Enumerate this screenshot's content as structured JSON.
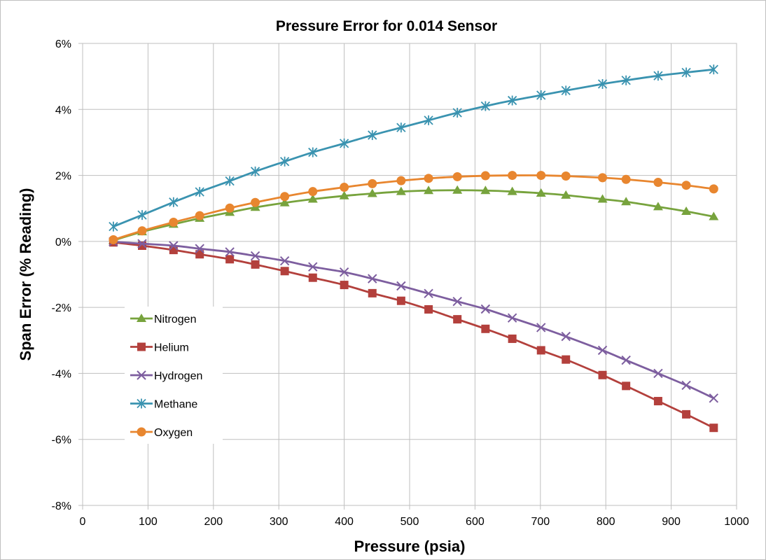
{
  "chart_data": {
    "type": "line",
    "title": "Pressure Error for 0.014 Sensor",
    "xlabel": "Pressure (psia)",
    "ylabel": "Span Error (% Reading)",
    "xlim": [
      0,
      1000
    ],
    "ylim": [
      -8,
      6
    ],
    "x_ticks": [
      "0",
      "100",
      "200",
      "300",
      "400",
      "500",
      "600",
      "700",
      "800",
      "900",
      "1000"
    ],
    "y_ticks": [
      "-8%",
      "-6%",
      "-4%",
      "-2%",
      "0%",
      "2%",
      "4%",
      "6%"
    ],
    "grid": true,
    "legend_position": "left",
    "x": [
      47,
      91,
      139,
      179,
      225,
      264,
      309,
      352,
      400,
      443,
      487,
      529,
      573,
      616,
      657,
      701,
      739,
      795,
      831,
      880,
      923,
      965
    ],
    "series": [
      {
        "name": "Nitrogen",
        "color": "#77a33d",
        "marker": "triangle",
        "values": [
          0.03,
          0.29,
          0.52,
          0.7,
          0.88,
          1.03,
          1.17,
          1.28,
          1.38,
          1.45,
          1.51,
          1.54,
          1.55,
          1.54,
          1.51,
          1.46,
          1.4,
          1.28,
          1.2,
          1.05,
          0.91,
          0.75
        ]
      },
      {
        "name": "Helium",
        "color": "#b3403c",
        "marker": "square",
        "values": [
          -0.03,
          -0.13,
          -0.26,
          -0.39,
          -0.54,
          -0.7,
          -0.9,
          -1.1,
          -1.32,
          -1.57,
          -1.8,
          -2.06,
          -2.36,
          -2.65,
          -2.95,
          -3.3,
          -3.58,
          -4.05,
          -4.38,
          -4.84,
          -5.24,
          -5.65
        ]
      },
      {
        "name": "Hydrogen",
        "color": "#7d5e9f",
        "marker": "x",
        "values": [
          -0.01,
          -0.07,
          -0.13,
          -0.22,
          -0.32,
          -0.44,
          -0.59,
          -0.77,
          -0.93,
          -1.13,
          -1.35,
          -1.58,
          -1.82,
          -2.05,
          -2.32,
          -2.61,
          -2.88,
          -3.3,
          -3.6,
          -4.0,
          -4.36,
          -4.75
        ]
      },
      {
        "name": "Methane",
        "color": "#3a93b0",
        "marker": "asterisk",
        "values": [
          0.45,
          0.8,
          1.19,
          1.5,
          1.83,
          2.12,
          2.42,
          2.7,
          2.97,
          3.22,
          3.45,
          3.67,
          3.9,
          4.1,
          4.27,
          4.43,
          4.57,
          4.77,
          4.88,
          5.02,
          5.12,
          5.21
        ]
      },
      {
        "name": "Oxygen",
        "color": "#e8862f",
        "marker": "circle",
        "values": [
          0.05,
          0.32,
          0.58,
          0.78,
          1.01,
          1.18,
          1.36,
          1.51,
          1.64,
          1.75,
          1.84,
          1.91,
          1.96,
          1.99,
          2.0,
          2.0,
          1.98,
          1.93,
          1.88,
          1.79,
          1.7,
          1.59
        ]
      }
    ]
  }
}
